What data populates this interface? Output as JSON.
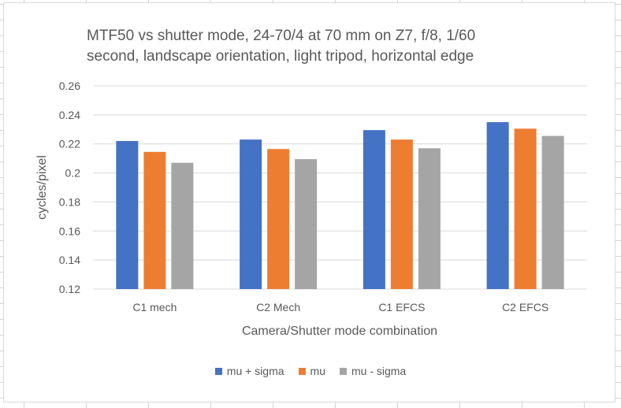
{
  "chart_data": {
    "type": "bar",
    "title_lines": [
      "MTF50 vs shutter mode, 24-70/4 at 70 mm on Z7, f/8, 1/60",
      "second, landscape orientation, light tripod, horizontal edge"
    ],
    "xlabel": "Camera/Shutter mode combination",
    "ylabel": "cycles/pixel",
    "ylim": [
      0.12,
      0.26
    ],
    "yticks": [
      0.12,
      0.14,
      0.16,
      0.18,
      0.2,
      0.22,
      0.24,
      0.26
    ],
    "ytick_labels": [
      "0.12",
      "0.14",
      "0.16",
      "0.18",
      "0.2",
      "0.22",
      "0.24",
      "0.26"
    ],
    "grid": true,
    "legend_position": "bottom",
    "categories": [
      "C1 mech",
      "C2 Mech",
      "C1 EFCS",
      "C2 EFCS"
    ],
    "series": [
      {
        "name": "mu + sigma",
        "color": "#4472c4",
        "values": [
          0.222,
          0.223,
          0.2295,
          0.235
        ]
      },
      {
        "name": "mu",
        "color": "#ed7d31",
        "values": [
          0.2145,
          0.2165,
          0.223,
          0.2305
        ]
      },
      {
        "name": "mu - sigma",
        "color": "#a5a5a5",
        "values": [
          0.207,
          0.2095,
          0.217,
          0.2255
        ]
      }
    ]
  }
}
